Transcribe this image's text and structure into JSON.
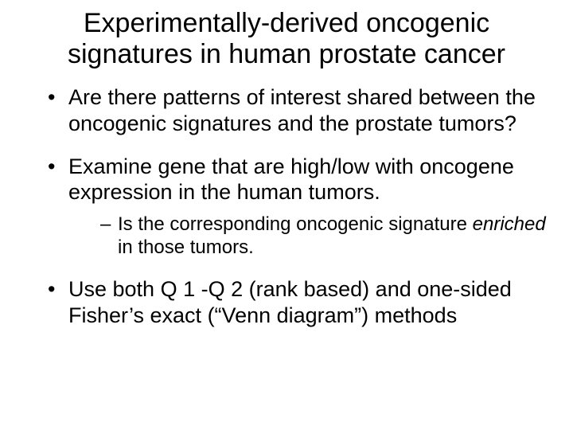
{
  "title": "Experimentally-derived oncogenic signatures in human prostate cancer",
  "bullets": {
    "b1": "Are there patterns of interest shared between the oncogenic signatures and the prostate tumors?",
    "b2": "Examine gene that are high/low with oncogene expression in the human tumors.",
    "b2_sub_a": "Is the corresponding oncogenic signature ",
    "b2_sub_em": "enriched",
    "b2_sub_b": " in those tumors.",
    "b3": "Use both Q 1 -Q 2 (rank based) and one-sided Fisher’s exact (“Venn diagram”) methods"
  },
  "colors": {
    "background": "#ffffff",
    "text": "#000000"
  },
  "typography": {
    "title_fontsize": 34,
    "body_fontsize": 27,
    "sub_fontsize": 24,
    "font_family": "Arial"
  }
}
